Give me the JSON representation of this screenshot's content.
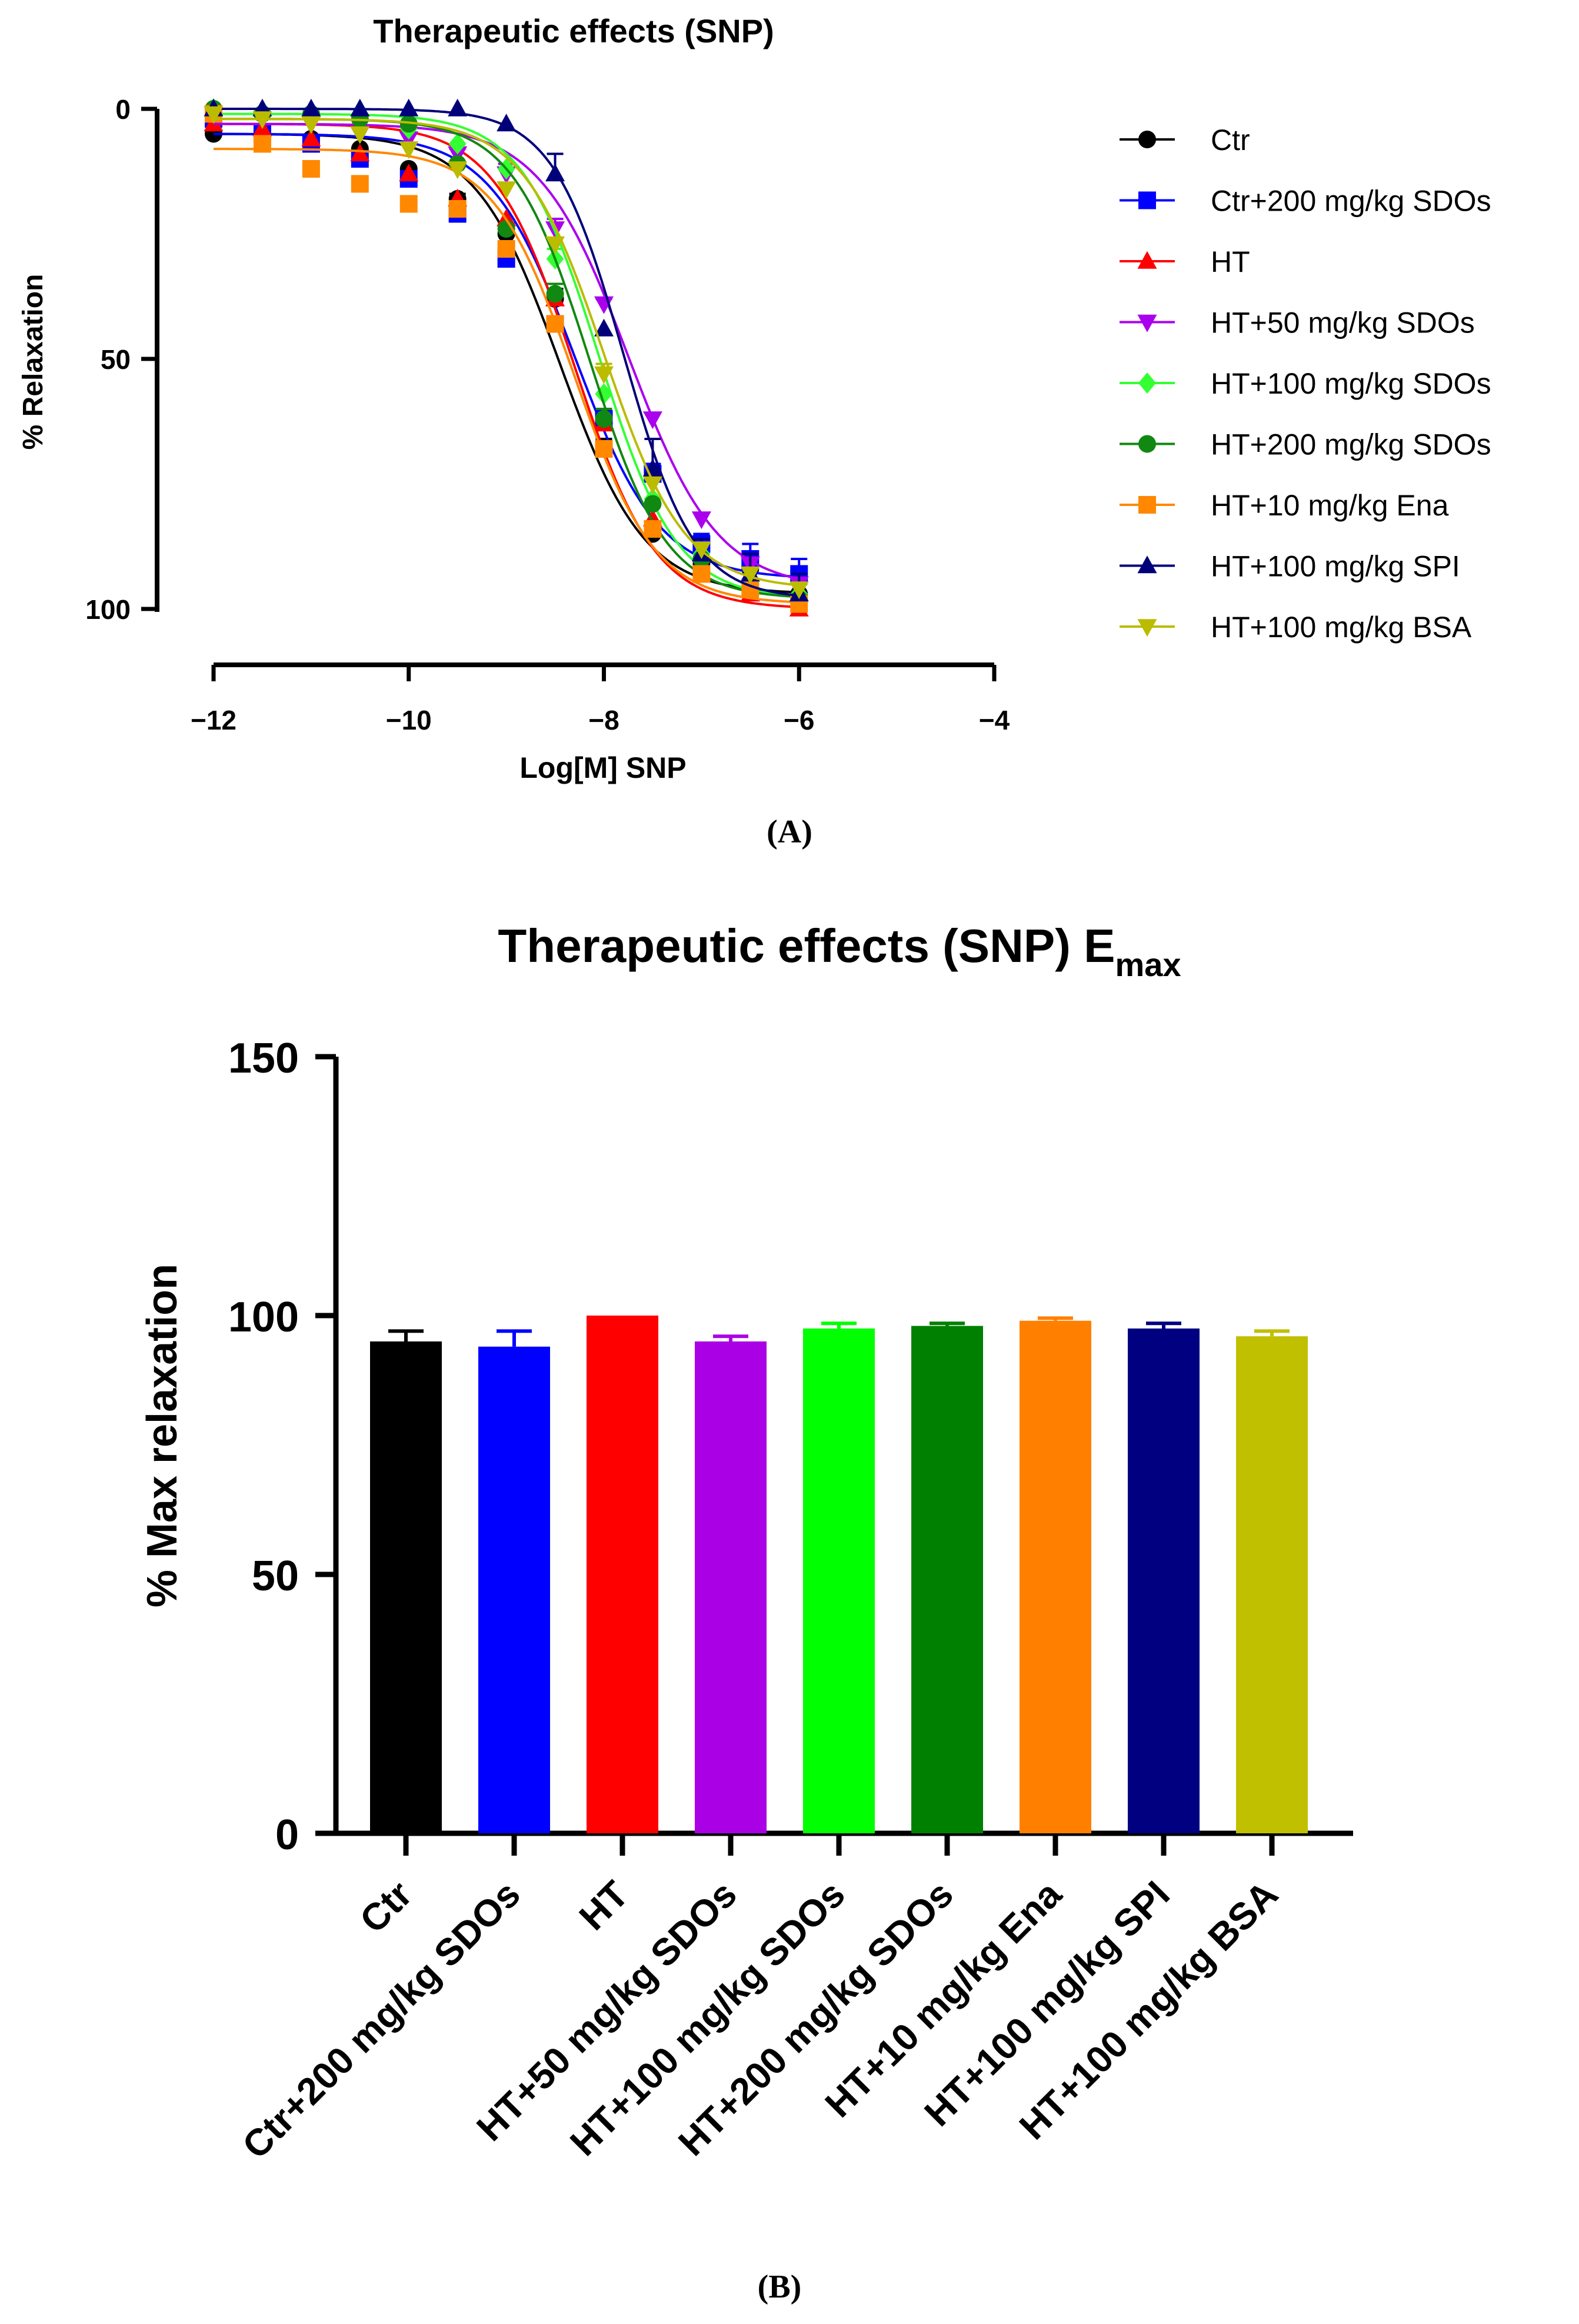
{
  "chart_data": [
    {
      "type": "line",
      "panel_label": "(A)",
      "title": "Therapeutic effects (SNP)",
      "xlabel": "Log[M] SNP",
      "ylabel": "% Relaxation",
      "xlim": [
        -12,
        -4
      ],
      "ylim": [
        0,
        100
      ],
      "y_inverted": true,
      "x_ticks": [
        -12,
        -10,
        -8,
        -6,
        -4
      ],
      "x_tick_labels": [
        "−12",
        "−10",
        "−8",
        "−6",
        "−4"
      ],
      "y_ticks": [
        0,
        50,
        100
      ],
      "y_tick_labels": [
        "0",
        "50",
        "100"
      ],
      "legend_position": "right",
      "x": [
        -12,
        -11.5,
        -11,
        -10.5,
        -10,
        -9.5,
        -9,
        -8.5,
        -8,
        -7.5,
        -7,
        -6.5,
        -6
      ],
      "series": [
        {
          "name": "Ctr",
          "color": "#000000",
          "marker": "circle",
          "bottom": 5,
          "top": 97,
          "logEC50": -8.45,
          "hill": 1.0,
          "values": [
            5,
            5,
            6,
            8,
            12,
            18,
            25,
            38,
            68,
            85,
            91,
            92,
            97
          ],
          "errors": [
            0,
            0,
            0,
            0,
            0,
            1,
            2,
            2,
            2,
            0,
            0,
            2,
            2
          ]
        },
        {
          "name": "Ctr+200 mg/kg SDOs",
          "color": "#0000ff",
          "marker": "square",
          "bottom": 5,
          "top": 94,
          "logEC50": -8.3,
          "hill": 1.0,
          "values": [
            2,
            5,
            7,
            10,
            14,
            21,
            30,
            43,
            62,
            73,
            87,
            90,
            93
          ],
          "errors": [
            0,
            0,
            0,
            0,
            0,
            0,
            2,
            0,
            2,
            2,
            2,
            3,
            3
          ]
        },
        {
          "name": "HT",
          "color": "#ff0000",
          "marker": "triangle",
          "bottom": 3,
          "top": 100,
          "logEC50": -8.3,
          "hill": 1.05,
          "values": [
            3,
            4,
            6,
            9,
            13,
            18,
            22,
            38,
            63,
            82,
            93,
            97,
            100
          ],
          "errors": [
            0,
            0,
            0,
            0,
            0,
            0,
            0,
            0,
            0,
            0,
            0,
            0,
            0
          ]
        },
        {
          "name": "HT+50 mg/kg SDOs",
          "color": "#aa00ee",
          "marker": "triangle-down",
          "bottom": 3,
          "top": 96,
          "logEC50": -7.75,
          "hill": 0.95,
          "values": [
            1,
            2,
            3,
            5,
            6,
            9,
            13,
            24,
            39,
            62,
            82,
            91,
            95
          ],
          "errors": [
            0,
            0,
            0,
            0,
            0,
            1,
            2,
            2,
            1,
            0,
            0,
            0,
            0
          ]
        },
        {
          "name": "HT+100 mg/kg SDOs",
          "color": "#33ff33",
          "marker": "diamond",
          "bottom": 1,
          "top": 98,
          "logEC50": -8.05,
          "hill": 1.1,
          "values": [
            0,
            1,
            1,
            2,
            4,
            7,
            12,
            30,
            57,
            78,
            89,
            94,
            97
          ],
          "errors": [
            0,
            0,
            0,
            0,
            0,
            0,
            0,
            2,
            0,
            0,
            0,
            0,
            0
          ]
        },
        {
          "name": "HT+200 mg/kg SDOs",
          "color": "#118811",
          "marker": "circle",
          "bottom": 2,
          "top": 98,
          "logEC50": -8.15,
          "hill": 1.1,
          "values": [
            0,
            1,
            1,
            2,
            3,
            11,
            24,
            37,
            62,
            79,
            90,
            95,
            98
          ],
          "errors": [
            0,
            0,
            0,
            0,
            0,
            0,
            0,
            2,
            2,
            0,
            0,
            0,
            0
          ]
        },
        {
          "name": "HT+10 mg/kg Ena",
          "color": "#ff8800",
          "marker": "square",
          "bottom": 8,
          "top": 99,
          "logEC50": -8.3,
          "hill": 1.05,
          "values": [
            1,
            7,
            12,
            15,
            19,
            20,
            28,
            43,
            68,
            84,
            93,
            96,
            99
          ],
          "errors": [
            0,
            0,
            0,
            0,
            0,
            0,
            0,
            0,
            0,
            0,
            0,
            0,
            0
          ]
        },
        {
          "name": "HT+100 mg/kg SPI",
          "color": "#00007a",
          "marker": "triangle",
          "bottom": 0,
          "top": 98,
          "logEC50": -7.8,
          "hill": 1.2,
          "values": [
            0,
            0,
            0,
            0,
            0,
            0,
            3,
            13,
            44,
            72,
            89,
            93,
            97
          ],
          "errors": [
            0,
            0,
            0,
            0,
            0,
            0,
            0,
            4,
            0,
            6,
            3,
            4,
            4
          ]
        },
        {
          "name": "HT+100 mg/kg BSA",
          "color": "#bbbb00",
          "marker": "triangle-down",
          "bottom": 2,
          "top": 96,
          "logEC50": -8.0,
          "hill": 1.05,
          "values": [
            1,
            2,
            3,
            5,
            8,
            12,
            16,
            27,
            53,
            75,
            88,
            93,
            96
          ],
          "errors": [
            0,
            0,
            0,
            0,
            0,
            0,
            0,
            0,
            2,
            0,
            0,
            0,
            0
          ]
        }
      ]
    },
    {
      "type": "bar",
      "panel_label": "(B)",
      "title": "Therapeutic effects (SNP) E",
      "title_subscript": "max",
      "xlabel": "",
      "ylabel": "% Max relaxation",
      "ylim": [
        0,
        150
      ],
      "y_ticks": [
        0,
        50,
        100,
        150
      ],
      "y_tick_labels": [
        "0",
        "50",
        "100",
        "150"
      ],
      "categories": [
        "Ctr",
        "Ctr+200 mg/kg SDOs",
        "HT",
        "HT+50 mg/kg SDOs",
        "HT+100 mg/kg SDOs",
        "HT+200 mg/kg SDOs",
        "HT+10 mg/kg Ena",
        "HT+100 mg/kg SPI",
        "HT+100 mg/kg BSA"
      ],
      "values": [
        95,
        94,
        100,
        95,
        97.5,
        98,
        99,
        97.5,
        96
      ],
      "errors": [
        2,
        3,
        0,
        1,
        1,
        0.5,
        0.5,
        1,
        1
      ],
      "colors": [
        "#000000",
        "#0000ff",
        "#ff0000",
        "#aa00e6",
        "#00ff00",
        "#008000",
        "#ff8000",
        "#000080",
        "#c0c000"
      ]
    }
  ]
}
